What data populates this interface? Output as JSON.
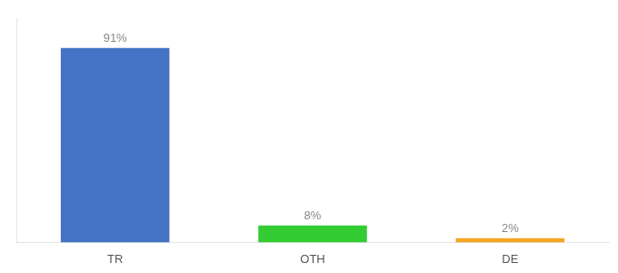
{
  "chart_data": {
    "type": "bar",
    "categories": [
      "TR",
      "OTH",
      "DE"
    ],
    "values": [
      91,
      8,
      2
    ],
    "value_labels": [
      "91%",
      "8%",
      "2%"
    ],
    "colors": [
      "#4472c4",
      "#33cc33",
      "#f5a623"
    ],
    "ylim": [
      0,
      105
    ],
    "grid": false,
    "data_labels": true,
    "tick_labels": "x"
  }
}
